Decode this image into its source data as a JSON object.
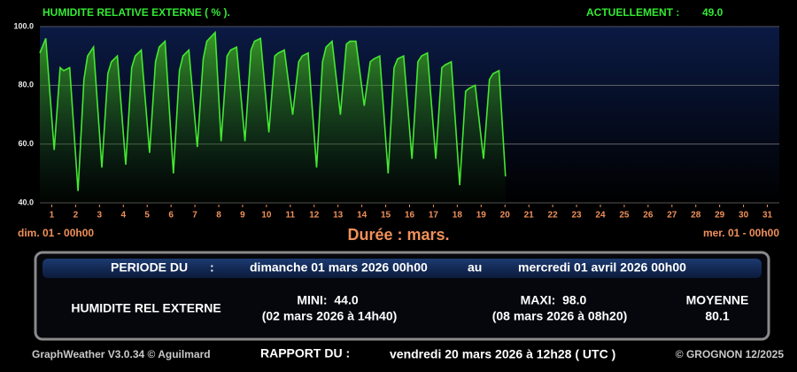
{
  "chart_data": {
    "type": "line",
    "title": "HUMIDITE RELATIVE EXTERNE ( % ).",
    "xlim": [
      1,
      32
    ],
    "ylim": [
      40,
      100
    ],
    "yticks": [
      {
        "value": 40,
        "label": "40.0"
      },
      {
        "value": 60,
        "label": "60.0"
      },
      {
        "value": 80,
        "label": "80.0"
      },
      {
        "value": 100,
        "label": "100.0"
      }
    ],
    "xticks": [
      {
        "value": 1.5,
        "label": "1"
      },
      {
        "value": 2.5,
        "label": "2"
      },
      {
        "value": 3.5,
        "label": "3"
      },
      {
        "value": 4.5,
        "label": "4"
      },
      {
        "value": 5.5,
        "label": "5"
      },
      {
        "value": 6.5,
        "label": "6"
      },
      {
        "value": 7.5,
        "label": "7"
      },
      {
        "value": 8.5,
        "label": "8"
      },
      {
        "value": 9.5,
        "label": "9"
      },
      {
        "value": 10.5,
        "label": "10"
      },
      {
        "value": 11.5,
        "label": "11"
      },
      {
        "value": 12.5,
        "label": "12"
      },
      {
        "value": 13.5,
        "label": "13"
      },
      {
        "value": 14.5,
        "label": "14"
      },
      {
        "value": 15.5,
        "label": "15"
      },
      {
        "value": 16.5,
        "label": "16"
      },
      {
        "value": 17.5,
        "label": "17"
      },
      {
        "value": 18.5,
        "label": "18"
      },
      {
        "value": 19.5,
        "label": "19"
      },
      {
        "value": 20.5,
        "label": "20"
      },
      {
        "value": 21.5,
        "label": "21"
      },
      {
        "value": 22.5,
        "label": "22"
      },
      {
        "value": 23.5,
        "label": "23"
      },
      {
        "value": 24.5,
        "label": "24"
      },
      {
        "value": 25.5,
        "label": "25"
      },
      {
        "value": 26.5,
        "label": "26"
      },
      {
        "value": 27.5,
        "label": "27"
      },
      {
        "value": 28.5,
        "label": "28"
      },
      {
        "value": 29.5,
        "label": "29"
      },
      {
        "value": 30.5,
        "label": "30"
      },
      {
        "value": 31.5,
        "label": "31"
      }
    ],
    "grid": true,
    "color": "#44e830",
    "x": [
      1,
      1.25,
      1.6,
      1.85,
      2,
      2.25,
      2.6,
      2.85,
      3,
      3.25,
      3.6,
      3.85,
      4,
      4.25,
      4.6,
      4.85,
      5,
      5.25,
      5.6,
      5.85,
      6,
      6.25,
      6.6,
      6.85,
      7,
      7.25,
      7.6,
      7.85,
      8,
      8.35,
      8.6,
      8.85,
      9,
      9.25,
      9.6,
      9.85,
      10,
      10.25,
      10.6,
      10.85,
      11,
      11.25,
      11.6,
      11.85,
      12,
      12.25,
      12.6,
      12.85,
      13,
      13.25,
      13.6,
      13.85,
      14,
      14.25,
      14.6,
      14.85,
      15,
      15.25,
      15.6,
      15.85,
      16,
      16.25,
      16.6,
      16.85,
      17,
      17.25,
      17.6,
      17.85,
      18,
      18.25,
      18.6,
      18.85,
      19,
      19.25,
      19.6,
      19.85,
      20,
      20.25,
      20.52
    ],
    "values": [
      91,
      96,
      58,
      86,
      85,
      86,
      44,
      82,
      90,
      93,
      52,
      84,
      88,
      90,
      53,
      86,
      90,
      92,
      57,
      88,
      93,
      95,
      50,
      85,
      90,
      92,
      59,
      89,
      95,
      98,
      61,
      90,
      92,
      93,
      61,
      92,
      95,
      96,
      64,
      90,
      91,
      92,
      70,
      88,
      90,
      91,
      52,
      88,
      93,
      95,
      70,
      94,
      95,
      95,
      73,
      88,
      89,
      90,
      50,
      86,
      89,
      90,
      55,
      88,
      90,
      91,
      55,
      86,
      87,
      88,
      46,
      78,
      79,
      80,
      55,
      82,
      84,
      85,
      49
    ],
    "start_label": "dim. 01 - 00h00",
    "end_label": "mer. 01 - 00h00",
    "xlabel": "Durée : mars."
  },
  "header": {
    "current_label": "ACTUELLEMENT :",
    "current_value": "49.0"
  },
  "period": {
    "label": "PERIODE DU",
    "colon": ":",
    "start": "dimanche 01 mars 2026 00h00",
    "to": "au",
    "end": "mercredi 01 avril 2026 00h00"
  },
  "stats": {
    "name": "HUMIDITE REL EXTERNE",
    "min": "MINI:  44.0",
    "min_when": "(02 mars 2026 à 14h40)",
    "max": "MAXI:  98.0",
    "max_when": "(08 mars 2026 à 08h20)",
    "mean_label": "MOYENNE",
    "mean": "80.1"
  },
  "footer": {
    "software": "GraphWeather V3.0.34 © Aguilmard",
    "report_label": "RAPPORT DU :",
    "report_date": "vendredi 20 mars 2026 à 12h28 ( UTC )",
    "copyright": "© GROGNON 12/2025"
  }
}
